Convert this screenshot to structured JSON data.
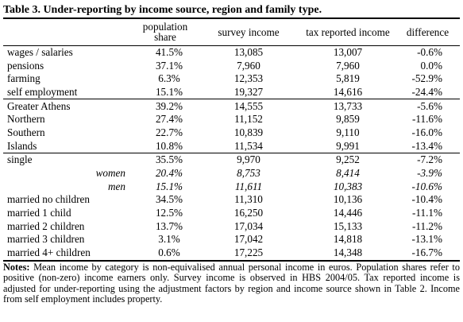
{
  "title": "Table 3. Under-reporting by income source, region and family type.",
  "headers": [
    "",
    "population share",
    "survey income",
    "tax reported income",
    "difference"
  ],
  "rows": [
    {
      "label": "wages / salaries",
      "values": [
        "41.5%",
        "13,085",
        "13,007",
        "-0.6%"
      ]
    },
    {
      "label": "pensions",
      "values": [
        "37.1%",
        "7,960",
        "7,960",
        "0.0%"
      ]
    },
    {
      "label": "farming",
      "values": [
        "6.3%",
        "12,353",
        "5,819",
        "-52.9%"
      ]
    },
    {
      "label": "self employment",
      "values": [
        "15.1%",
        "19,327",
        "14,616",
        "-24.4%"
      ]
    },
    {
      "label": "Greater Athens",
      "values": [
        "39.2%",
        "14,555",
        "13,733",
        "-5.6%"
      ]
    },
    {
      "label": "Northern",
      "values": [
        "27.4%",
        "11,152",
        "9,859",
        "-11.6%"
      ]
    },
    {
      "label": "Southern",
      "values": [
        "22.7%",
        "10,839",
        "9,110",
        "-16.0%"
      ]
    },
    {
      "label": "Islands",
      "values": [
        "10.8%",
        "11,534",
        "9,991",
        "-13.4%"
      ]
    },
    {
      "label": "single",
      "values": [
        "35.5%",
        "9,970",
        "9,252",
        "-7.2%"
      ]
    },
    {
      "label": "women",
      "values": [
        "20.4%",
        "8,753",
        "8,414",
        "-3.9%"
      ]
    },
    {
      "label": "men",
      "values": [
        "15.1%",
        "11,611",
        "10,383",
        "-10.6%"
      ]
    },
    {
      "label": "married no children",
      "values": [
        "34.5%",
        "11,310",
        "10,136",
        "-10.4%"
      ]
    },
    {
      "label": "married 1 child",
      "values": [
        "12.5%",
        "16,250",
        "14,446",
        "-11.1%"
      ]
    },
    {
      "label": "married 2 children",
      "values": [
        "13.7%",
        "17,034",
        "15,133",
        "-11.2%"
      ]
    },
    {
      "label": "married 3 children",
      "values": [
        "3.1%",
        "17,042",
        "14,818",
        "-13.1%"
      ]
    },
    {
      "label": "married 4+ children",
      "values": [
        "0.6%",
        "17,225",
        "14,348",
        "-16.7%"
      ]
    }
  ],
  "notes": {
    "label": "Notes:",
    "text": " Mean income by category is non-equivalised annual personal income in euros. Population shares refer to positive (non-zero) income earners only. Survey income is observed in HBS 2004/05. Tax reported income is adjusted for under-reporting using the adjustment factors by region and income source shown in Table 2. Income from self employment includes property."
  }
}
